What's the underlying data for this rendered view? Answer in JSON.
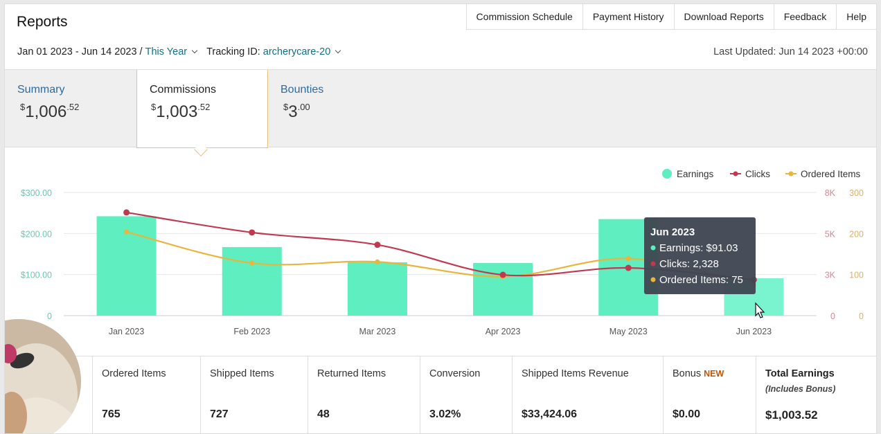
{
  "header": {
    "title": "Reports",
    "nav": [
      "Commission Schedule",
      "Payment History",
      "Download Reports",
      "Feedback",
      "Help"
    ]
  },
  "filters": {
    "date_range": "Jan 01 2023 - Jun 14 2023",
    "separator": " / ",
    "period": "This Year",
    "tracking_label": "Tracking ID: ",
    "tracking_id": "archerycare-20",
    "last_updated": "Last Updated: Jun 14 2023 +00:00"
  },
  "tabs": [
    {
      "label": "Summary",
      "currency": "$",
      "whole": "1,006",
      "cents": ".52",
      "active": false
    },
    {
      "label": "Commissions",
      "currency": "$",
      "whole": "1,003",
      "cents": ".52",
      "active": true
    },
    {
      "label": "Bounties",
      "currency": "$",
      "whole": "3",
      "cents": ".00",
      "active": false
    }
  ],
  "chart_data": {
    "type": "bar",
    "categories": [
      "Jan 2023",
      "Feb 2023",
      "Mar 2023",
      "Apr 2023",
      "May 2023",
      "Jun 2023"
    ],
    "series": [
      {
        "name": "Earnings",
        "kind": "bar",
        "axis": "left",
        "values": [
          242,
          167,
          130,
          128,
          235,
          91.03
        ],
        "color": "#5eeebf"
      },
      {
        "name": "Clicks",
        "kind": "line",
        "axis": "right-outer",
        "values": [
          6700,
          5400,
          4600,
          2650,
          3100,
          2328
        ],
        "color": "#c0394f"
      },
      {
        "name": "Ordered Items",
        "kind": "line",
        "axis": "right-inner",
        "values": [
          204,
          128,
          131,
          95,
          139,
          75
        ],
        "color": "#e9b53b"
      }
    ],
    "y_left": {
      "ticks": [
        "$300.00",
        "$200.00",
        "$100.00",
        "0"
      ],
      "range": [
        0,
        300
      ]
    },
    "y_right_outer": {
      "ticks": [
        "8K",
        "5K",
        "3K",
        "0"
      ],
      "range": [
        0,
        8000
      ]
    },
    "y_right_inner": {
      "ticks": [
        "300",
        "200",
        "100",
        "0"
      ],
      "range": [
        0,
        300
      ]
    },
    "legend": [
      "Earnings",
      "Clicks",
      "Ordered Items"
    ],
    "legend_position": "top-right",
    "grid": true,
    "tooltip": {
      "title": "Jun 2023",
      "lines": [
        "Earnings: $91.03",
        "Clicks: 2,328",
        "Ordered Items: 75"
      ]
    }
  },
  "stats": [
    {
      "label": "Ordered Items",
      "value": "765"
    },
    {
      "label": "Shipped Items",
      "value": "727"
    },
    {
      "label": "Returned Items",
      "value": "48"
    },
    {
      "label": "Conversion",
      "value": "3.02%"
    },
    {
      "label": "Shipped Items Revenue",
      "value": "$33,424.06"
    },
    {
      "label": "Bonus",
      "badge": "NEW",
      "value": "$0.00"
    },
    {
      "label": "Total Earnings",
      "sub": "(Includes Bonus)",
      "value": "$1,003.52"
    }
  ]
}
